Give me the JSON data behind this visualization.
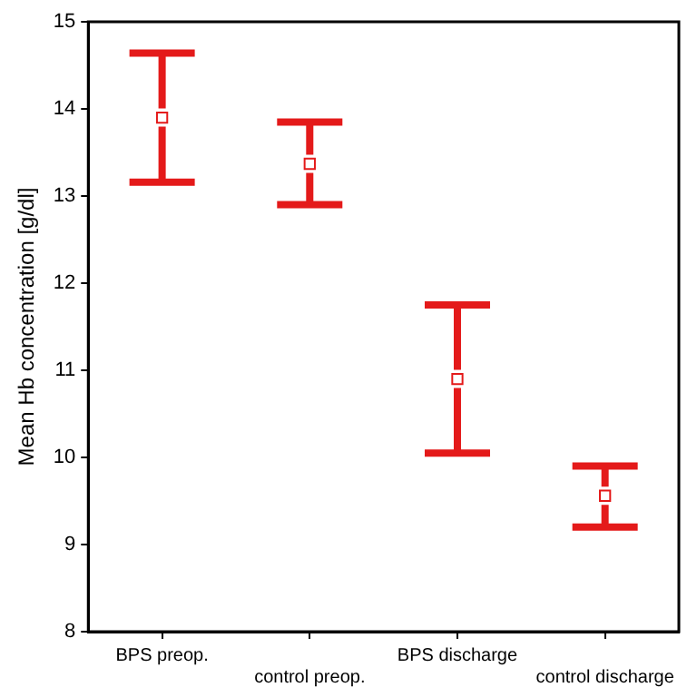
{
  "chart_data": {
    "type": "scatter",
    "ylabel": "Mean Hb concentration [g/dl]",
    "categories": [
      "BPS preop.",
      "control preop.",
      "BPS discharge",
      "control discharge"
    ],
    "series": [
      {
        "color": "#e41a1a",
        "values": [
          13.9,
          13.37,
          10.9,
          9.56
        ],
        "errors": [
          [
            13.16,
            14.64
          ],
          [
            12.9,
            13.85
          ],
          [
            10.05,
            11.75
          ],
          [
            9.2,
            9.9
          ]
        ]
      }
    ],
    "ylim": [
      8,
      15
    ],
    "yticks": [
      8,
      9,
      10,
      11,
      12,
      13,
      14,
      15
    ],
    "grid": false,
    "legend": false,
    "marker": "square"
  }
}
